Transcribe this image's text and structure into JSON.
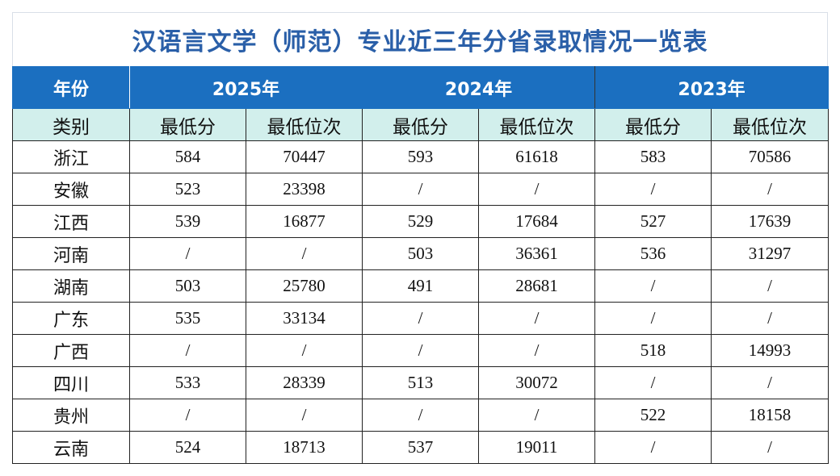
{
  "title": "汉语言文学（师范）专业近三年分省录取情况一览表",
  "header": {
    "year_label": "年份",
    "category_label": "类别",
    "years": [
      "2025年",
      "2024年",
      "2023年"
    ],
    "min_score": "最低分",
    "min_rank": "最低位次"
  },
  "rows": [
    {
      "province": "浙江",
      "cells": [
        "584",
        "70447",
        "593",
        "61618",
        "583",
        "70586"
      ]
    },
    {
      "province": "安徽",
      "cells": [
        "523",
        "23398",
        "/",
        "/",
        "/",
        "/"
      ]
    },
    {
      "province": "江西",
      "cells": [
        "539",
        "16877",
        "529",
        "17684",
        "527",
        "17639"
      ]
    },
    {
      "province": "河南",
      "cells": [
        "/",
        "/",
        "503",
        "36361",
        "536",
        "31297"
      ]
    },
    {
      "province": "湖南",
      "cells": [
        "503",
        "25780",
        "491",
        "28681",
        "/",
        "/"
      ]
    },
    {
      "province": "广东",
      "cells": [
        "535",
        "33134",
        "/",
        "/",
        "/",
        "/"
      ]
    },
    {
      "province": "广西",
      "cells": [
        "/",
        "/",
        "/",
        "/",
        "518",
        "14993"
      ]
    },
    {
      "province": "四川",
      "cells": [
        "533",
        "28339",
        "513",
        "30072",
        "/",
        "/"
      ]
    },
    {
      "province": "贵州",
      "cells": [
        "/",
        "/",
        "/",
        "/",
        "522",
        "18158"
      ]
    },
    {
      "province": "云南",
      "cells": [
        "524",
        "18713",
        "537",
        "19011",
        "/",
        "/"
      ]
    }
  ]
}
